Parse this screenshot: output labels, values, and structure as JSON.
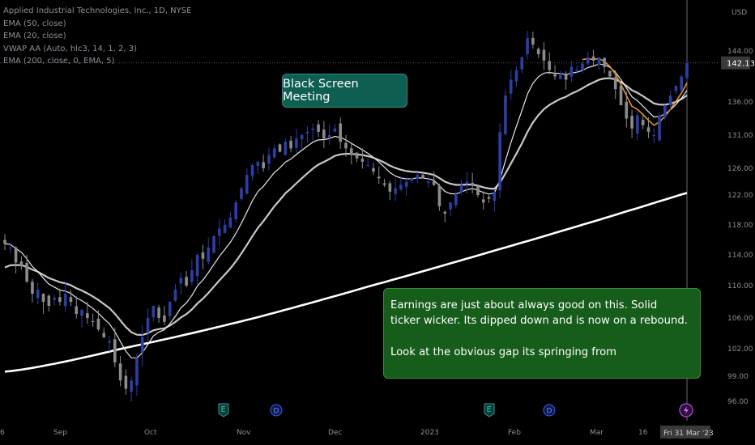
{
  "legend": [
    "Applied Industrial Technologies, Inc., 1D, NYSE",
    "EMA (50, close)",
    "EMA (20, close)",
    "VWAP AA (Auto, hlc3, 14, 1, 2, 3)",
    "EMA (200, close, 0, EMA, 5)"
  ],
  "annotations": {
    "note1": "Black Screen Meeting",
    "note2_line1": "Earnings are just about always good on this. Solid",
    "note2_line2": "ticker wicker. Its dipped down and is now on a rebound.",
    "note2_line3": "Look at the obvious gap its springing from"
  },
  "colors": {
    "background": "#000000",
    "up_candle": "#2b3fa8",
    "down_candle": "#8c8c8c",
    "ema20": "#e8e8e8",
    "ema50": "#c9c9c9",
    "ema200": "#ffffff",
    "vwap": "#e8922d",
    "axis_text": "#8b8f97",
    "price_badge": "#3a3a3a"
  },
  "chart_data": {
    "type": "candlestick",
    "y_axis": {
      "unit": "USD",
      "ticks": [
        96.0,
        99.0,
        102.0,
        106.0,
        110.0,
        114.0,
        118.0,
        122.0,
        126.0,
        131.0,
        136.0,
        144.0
      ],
      "current_price": "142.13"
    },
    "x_axis": {
      "ticks": [
        "6",
        "Sep",
        "Oct",
        "Nov",
        "Dec",
        "2023",
        "Feb",
        "Mar",
        "16"
      ],
      "cursor_label": "Fri 31 Mar '23"
    },
    "event_markers": [
      {
        "type": "E",
        "near": "Nov"
      },
      {
        "type": "D",
        "near": "Nov"
      },
      {
        "type": "E",
        "near": "2023"
      },
      {
        "type": "D",
        "near": "Feb"
      },
      {
        "type": "lightning",
        "near": "Fri 31 Mar '23"
      }
    ],
    "closes": [
      115.5,
      115.0,
      113.0,
      112.5,
      110.5,
      109.0,
      109.5,
      108.0,
      107.5,
      108.5,
      108.0,
      109.0,
      108.0,
      106.5,
      107.0,
      106.0,
      105.5,
      104.5,
      103.5,
      103.0,
      100.5,
      98.5,
      97.5,
      98.5,
      101.0,
      103.5,
      106.0,
      107.5,
      106.0,
      105.5,
      108.0,
      109.5,
      111.0,
      110.0,
      112.0,
      114.0,
      113.5,
      115.0,
      116.5,
      117.5,
      118.0,
      119.0,
      121.0,
      123.0,
      125.0,
      126.5,
      127.0,
      126.0,
      128.0,
      129.0,
      128.5,
      130.0,
      129.0,
      130.5,
      131.0,
      131.5,
      132.0,
      131.5,
      130.5,
      131.0,
      132.0,
      130.0,
      129.0,
      128.0,
      127.5,
      127.0,
      126.5,
      125.5,
      124.5,
      123.5,
      122.5,
      123.0,
      123.5,
      124.0,
      124.5,
      125.0,
      124.5,
      124.0,
      123.5,
      120.5,
      119.5,
      121.0,
      122.0,
      123.5,
      124.0,
      123.5,
      122.0,
      121.0,
      121.5,
      122.5,
      131.5,
      137.0,
      139.5,
      141.0,
      143.0,
      146.0,
      145.0,
      143.5,
      142.5,
      141.0,
      140.0,
      140.5,
      139.5,
      141.5,
      141.0,
      142.0,
      143.0,
      142.5,
      143.0,
      141.5,
      140.0,
      138.0,
      135.5,
      133.5,
      132.0,
      134.0,
      132.5,
      131.5,
      131.0,
      134.0,
      135.5,
      137.0,
      138.5,
      140.0,
      142.13
    ]
  }
}
